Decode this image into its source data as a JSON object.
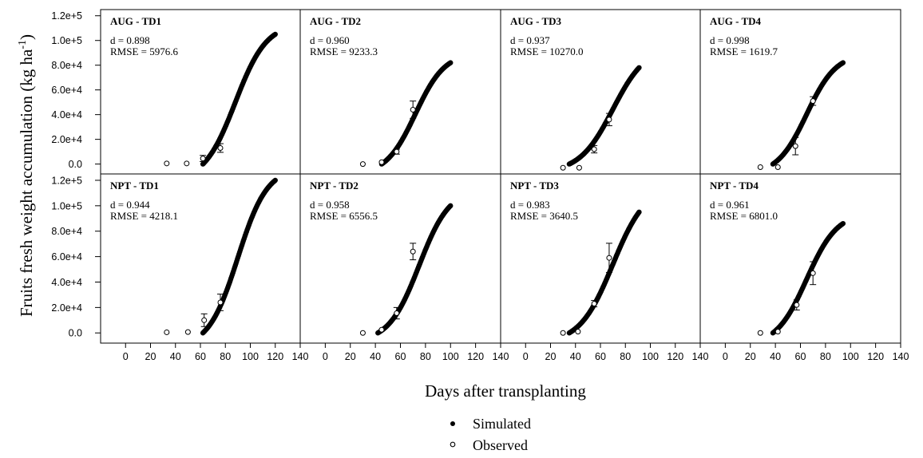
{
  "chart_data": {
    "type": "scatter",
    "ylabel": "Fruits fresh weight accumulation (kg ha-1)",
    "xlabel": "Days after transplanting",
    "xlim": [
      -20,
      140
    ],
    "ylim": [
      -8000,
      125000
    ],
    "x_ticks": [
      "0",
      "20",
      "40",
      "60",
      "80",
      "100",
      "120",
      "140"
    ],
    "y_ticks": [
      "0.0",
      "2.0e+4",
      "4.0e+4",
      "6.0e+4",
      "8.0e+4",
      "1.0e+5",
      "1.2e+5"
    ],
    "legend": [
      {
        "label": "Simulated",
        "marker": "filled-circle"
      },
      {
        "label": "Observed",
        "marker": "open-circle"
      }
    ],
    "panels": [
      {
        "title": "AUG - TD1",
        "d": "d = 0.898",
        "rmse": "RMSE = 5976.6",
        "sim_start": 62,
        "sim_end": 120,
        "sim_max": 105000,
        "sim_mid": 88,
        "sim_k": 0.08,
        "observed": [
          {
            "x": 33,
            "y": 500,
            "err": 0
          },
          {
            "x": 49,
            "y": 500,
            "err": 0
          },
          {
            "x": 62,
            "y": 4500,
            "err": 2500
          },
          {
            "x": 76,
            "y": 13000,
            "err": 3500
          }
        ]
      },
      {
        "title": "AUG - TD2",
        "d": "d = 0.960",
        "rmse": "RMSE = 9233.3",
        "sim_start": 45,
        "sim_end": 100,
        "sim_max": 82000,
        "sim_mid": 72,
        "sim_k": 0.085,
        "observed": [
          {
            "x": 30,
            "y": 0,
            "err": 0
          },
          {
            "x": 45,
            "y": 1500,
            "err": 0
          },
          {
            "x": 57,
            "y": 10000,
            "err": 2000
          },
          {
            "x": 70,
            "y": 44000,
            "err": 7000
          }
        ]
      },
      {
        "title": "AUG - TD3",
        "d": "d = 0.937",
        "rmse": "RMSE = 10270.0",
        "sim_start": 35,
        "sim_end": 91,
        "sim_max": 78000,
        "sim_mid": 70,
        "sim_k": 0.075,
        "observed": [
          {
            "x": 30,
            "y": -3000,
            "err": 0
          },
          {
            "x": 43,
            "y": -3000,
            "err": 0
          },
          {
            "x": 55,
            "y": 12000,
            "err": 3000
          },
          {
            "x": 67,
            "y": 36000,
            "err": 5000
          }
        ]
      },
      {
        "title": "AUG - TD4",
        "d": "d = 0.998",
        "rmse": "RMSE = 1619.7",
        "sim_start": 38,
        "sim_end": 94,
        "sim_max": 82000,
        "sim_mid": 65,
        "sim_k": 0.085,
        "observed": [
          {
            "x": 28,
            "y": -2500,
            "err": 0
          },
          {
            "x": 42,
            "y": -2500,
            "err": 0
          },
          {
            "x": 56,
            "y": 14500,
            "err": 7000
          },
          {
            "x": 70,
            "y": 51000,
            "err": 3500
          }
        ]
      },
      {
        "title": "NPT - TD1",
        "d": "d = 0.944",
        "rmse": "RMSE = 4218.1",
        "sim_start": 62,
        "sim_end": 120,
        "sim_max": 120000,
        "sim_mid": 90,
        "sim_k": 0.085,
        "observed": [
          {
            "x": 33,
            "y": 500,
            "err": 0
          },
          {
            "x": 50,
            "y": 700,
            "err": 0
          },
          {
            "x": 63,
            "y": 10000,
            "err": 5000
          },
          {
            "x": 76,
            "y": 24000,
            "err": 6500
          }
        ]
      },
      {
        "title": "NPT - TD2",
        "d": "d = 0.958",
        "rmse": "RMSE = 6556.5",
        "sim_start": 42,
        "sim_end": 100,
        "sim_max": 100000,
        "sim_mid": 75,
        "sim_k": 0.082,
        "observed": [
          {
            "x": 30,
            "y": 0,
            "err": 0
          },
          {
            "x": 45,
            "y": 2500,
            "err": 0
          },
          {
            "x": 57,
            "y": 15500,
            "err": 4500
          },
          {
            "x": 70,
            "y": 64000,
            "err": 6500
          }
        ]
      },
      {
        "title": "NPT - TD3",
        "d": "d = 0.983",
        "rmse": "RMSE = 3640.5",
        "sim_start": 35,
        "sim_end": 91,
        "sim_max": 95000,
        "sim_mid": 70,
        "sim_k": 0.075,
        "observed": [
          {
            "x": 30,
            "y": 0,
            "err": 0
          },
          {
            "x": 42,
            "y": 1000,
            "err": 0
          },
          {
            "x": 55,
            "y": 23000,
            "err": 2500
          },
          {
            "x": 67,
            "y": 59000,
            "err": 11500
          }
        ]
      },
      {
        "title": "NPT - TD4",
        "d": "d = 0.961",
        "rmse": "RMSE = 6801.0",
        "sim_start": 38,
        "sim_end": 94,
        "sim_max": 86000,
        "sim_mid": 65,
        "sim_k": 0.082,
        "observed": [
          {
            "x": 28,
            "y": 0,
            "err": 0
          },
          {
            "x": 42,
            "y": 1000,
            "err": 0
          },
          {
            "x": 57,
            "y": 22000,
            "err": 4000
          },
          {
            "x": 70,
            "y": 47000,
            "err": 9000
          }
        ]
      }
    ]
  }
}
